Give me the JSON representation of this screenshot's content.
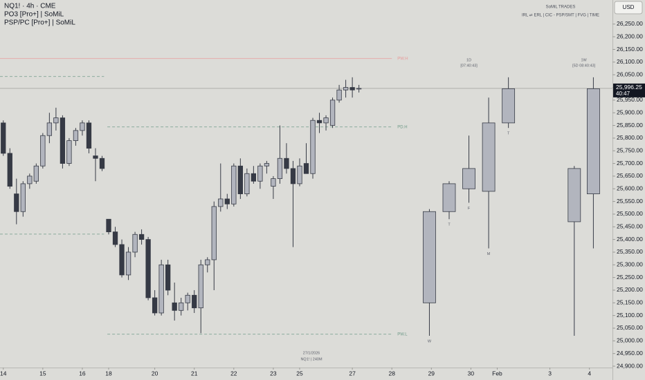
{
  "chart_data": {
    "type": "candlestick",
    "title": "NQ1! · 4h · CME",
    "indicators": [
      "PO3 [Pro+] | SoMiL",
      "PSP/PC [Pro+] | SoMiL"
    ],
    "brand": "SoMiL TRADES",
    "brand_subtitle": "IRL ⇌ ERL | CIC - PSP/SMT | FVG | TIME",
    "currency": "USD",
    "last_price": {
      "value": 25996.25,
      "label": "25,996.25"
    },
    "countdown": "40:47",
    "footer": [
      "27/1/2026",
      "NQ1! | 240M"
    ],
    "up_color": "#b2b5be",
    "down_color": "#363a45",
    "border_color": "#363a45",
    "ylim": [
      24900,
      26345
    ],
    "yticks": [
      {
        "value": 24900,
        "label": "24,900.00"
      },
      {
        "value": 24950,
        "label": "24,950.00"
      },
      {
        "value": 25000,
        "label": "25,000.00"
      },
      {
        "value": 25050,
        "label": "25,050.00"
      },
      {
        "value": 25100,
        "label": "25,100.00"
      },
      {
        "value": 25150,
        "label": "25,150.00"
      },
      {
        "value": 25200,
        "label": "25,200.00"
      },
      {
        "value": 25250,
        "label": "25,250.00"
      },
      {
        "value": 25300,
        "label": "25,300.00"
      },
      {
        "value": 25350,
        "label": "25,350.00"
      },
      {
        "value": 25400,
        "label": "25,400.00"
      },
      {
        "value": 25450,
        "label": "25,450.00"
      },
      {
        "value": 25500,
        "label": "25,500.00"
      },
      {
        "value": 25550,
        "label": "25,550.00"
      },
      {
        "value": 25600,
        "label": "25,600.00"
      },
      {
        "value": 25650,
        "label": "25,650.00"
      },
      {
        "value": 25700,
        "label": "25,700.00"
      },
      {
        "value": 25750,
        "label": "25,750.00"
      },
      {
        "value": 25800,
        "label": "25,800.00"
      },
      {
        "value": 25850,
        "label": "25,850.00"
      },
      {
        "value": 25900,
        "label": "25,900.00"
      },
      {
        "value": 25950,
        "label": "25,950.00"
      },
      {
        "value": 26000,
        "label": "26,000.00"
      },
      {
        "value": 26050,
        "label": "26,050.00"
      },
      {
        "value": 26100,
        "label": "26,100.00"
      },
      {
        "value": 26150,
        "label": "26,150.00"
      },
      {
        "value": 26200,
        "label": "26,200.00"
      },
      {
        "value": 26250,
        "label": "26,250.00"
      }
    ],
    "xlim": [
      -0.5,
      92.5
    ],
    "xticks": [
      {
        "value": 0,
        "label": "14"
      },
      {
        "value": 6,
        "label": "15"
      },
      {
        "value": 12,
        "label": "16"
      },
      {
        "value": 16,
        "label": "18"
      },
      {
        "value": 23,
        "label": "20"
      },
      {
        "value": 29,
        "label": "21"
      },
      {
        "value": 35,
        "label": "22"
      },
      {
        "value": 41,
        "label": "23"
      },
      {
        "value": 45,
        "label": "25"
      },
      {
        "value": 53,
        "label": "27"
      },
      {
        "value": 59,
        "label": "28"
      },
      {
        "value": 65,
        "label": "29"
      },
      {
        "value": 71,
        "label": "30"
      },
      {
        "value": 75,
        "label": "Feb"
      },
      {
        "value": 83,
        "label": "3"
      },
      {
        "value": 89,
        "label": "4"
      }
    ],
    "candles": {
      "x": [
        0,
        1,
        2,
        3,
        4,
        5,
        6,
        7,
        8,
        9,
        10,
        11,
        12,
        13,
        14,
        15,
        16,
        17,
        18,
        19,
        20,
        21,
        22,
        23,
        24,
        25,
        26,
        27,
        28,
        29,
        30,
        31,
        32,
        33,
        34,
        35,
        36,
        37,
        38,
        39,
        40,
        41,
        42,
        43,
        44,
        45,
        46,
        47,
        48,
        49,
        50,
        51,
        52,
        53,
        54
      ],
      "open": [
        25860,
        25740,
        25580,
        25510,
        25620,
        25630,
        25690,
        25810,
        25860,
        25880,
        25700,
        25790,
        25830,
        25860,
        25730,
        25720,
        25480,
        25430,
        25380,
        25260,
        25350,
        25420,
        25400,
        25170,
        25110,
        25300,
        25150,
        25120,
        25150,
        25180,
        25130,
        25300,
        25320,
        25530,
        25560,
        25540,
        25690,
        25580,
        25660,
        25630,
        25690,
        25610,
        25640,
        25720,
        25680,
        25620,
        25700,
        25660,
        25870,
        25860,
        25850,
        25950,
        25990,
        26000,
        25995
      ],
      "high": [
        25870,
        25760,
        25640,
        25630,
        25660,
        25700,
        25820,
        25900,
        25920,
        25890,
        25800,
        25840,
        25870,
        25870,
        25760,
        25730,
        25480,
        25450,
        25400,
        25370,
        25430,
        25440,
        25410,
        25200,
        25320,
        25320,
        25230,
        25170,
        25190,
        25200,
        25320,
        25330,
        25550,
        25700,
        25580,
        25700,
        25720,
        25680,
        25690,
        25700,
        25710,
        25650,
        25850,
        25780,
        25710,
        25720,
        25780,
        25880,
        25900,
        25890,
        25960,
        26010,
        26030,
        26040,
        26010
      ],
      "low": [
        25730,
        25600,
        25460,
        25490,
        25600,
        25620,
        25680,
        25780,
        25830,
        25680,
        25690,
        25770,
        25810,
        25740,
        25630,
        25670,
        25420,
        25370,
        25250,
        25240,
        25330,
        25380,
        25160,
        25100,
        25100,
        25180,
        25080,
        25100,
        25120,
        25110,
        25030,
        25270,
        25200,
        25510,
        25520,
        25530,
        25560,
        25570,
        25620,
        25600,
        25660,
        25560,
        25620,
        25660,
        25370,
        25610,
        25660,
        25640,
        25820,
        25830,
        25840,
        25940,
        25960,
        25960,
        25980
      ],
      "close": [
        25740,
        25610,
        25510,
        25620,
        25650,
        25690,
        25810,
        25860,
        25880,
        25700,
        25790,
        25830,
        25860,
        25760,
        25720,
        25680,
        25430,
        25380,
        25260,
        25350,
        25420,
        25400,
        25170,
        25110,
        25300,
        25200,
        25120,
        25150,
        25180,
        25130,
        25300,
        25320,
        25530,
        25560,
        25540,
        25690,
        25580,
        25660,
        25630,
        25690,
        25700,
        25640,
        25720,
        25680,
        25620,
        25690,
        25660,
        25870,
        25860,
        25880,
        25950,
        25990,
        26000,
        25990,
        25996.25
      ]
    },
    "htf": [
      {
        "title": "1D",
        "timer": "[07:40:43]",
        "x": [
          64.7,
          67.7,
          70.7,
          73.7,
          76.7
        ],
        "open": [
          25150,
          25510,
          25600,
          25590,
          25860
        ],
        "high": [
          25520,
          25630,
          25810,
          25960,
          26040
        ],
        "low": [
          25020,
          25480,
          25545,
          25365,
          25840
        ],
        "close": [
          25510,
          25620,
          25680,
          25860,
          25995
        ],
        "labels": [
          "W",
          "T",
          "F",
          "M",
          "T"
        ]
      },
      {
        "title": "1W",
        "timer": "[5D 08:40:43]",
        "x": [
          86.7,
          89.6
        ],
        "open": [
          25470,
          25580
        ],
        "high": [
          25690,
          26040
        ],
        "low": [
          25020,
          25365
        ],
        "close": [
          25680,
          25995
        ]
      }
    ],
    "levels": [
      {
        "label": "PW.H",
        "value": 26114,
        "x_from": -0.5,
        "x_to": 59,
        "color": "#e89a9a",
        "dash": false
      },
      {
        "value": 26043,
        "x_from": -0.5,
        "x_to": 15.3,
        "color": "#6f9a88",
        "dash": true
      },
      {
        "label": "PD.H",
        "value": 25844,
        "x_from": 15.8,
        "x_to": 59,
        "color": "#6f9a88",
        "dash": true
      },
      {
        "value": 25421,
        "x_from": -0.5,
        "x_to": 15.3,
        "color": "#6f9a88",
        "dash": true
      },
      {
        "label": "PW.L",
        "value": 25026,
        "x_from": 15.8,
        "x_to": 59,
        "color": "#6f9a88",
        "dash": true
      }
    ]
  }
}
